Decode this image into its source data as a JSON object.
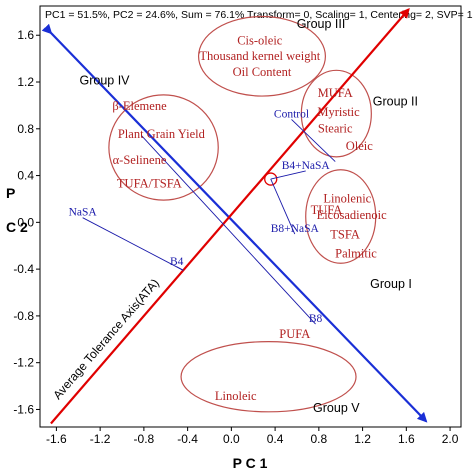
{
  "chart_data": {
    "type": "scatter",
    "header": "PC1 = 51.5%, PC2 = 24.6%, Sum = 76.1% Transform= 0, Scaling= 1, Centering= 2, SVP= 1",
    "xlabel": "P C 1",
    "ylabel": "P C 2",
    "xlim": [
      -1.75,
      2.1
    ],
    "ylim": [
      -1.75,
      1.85
    ],
    "xticks": [
      "-1.6",
      "-1.2",
      "-0.8",
      "-0.4",
      "0.0",
      "0.4",
      "0.8",
      "1.2",
      "1.6",
      "2.0"
    ],
    "yticks": [
      "1.6",
      "1.2",
      "0.8",
      "0.4",
      "0.0",
      "-0.4",
      "-0.8",
      "-1.2",
      "-1.6"
    ],
    "ytick_values": [
      1.6,
      1.2,
      0.8,
      0.4,
      0.0,
      -0.4,
      -0.8,
      -1.2,
      -1.6
    ],
    "xtick_values": [
      -1.6,
      -1.2,
      -0.8,
      -0.4,
      0.0,
      0.4,
      0.8,
      1.2,
      1.6,
      2.0
    ],
    "grid": false,
    "ata_label": "Average Tolerance Axis(ATA)",
    "ata_line": {
      "from": [
        -1.65,
        -1.72
      ],
      "to": [
        1.62,
        1.82
      ]
    },
    "ata_perpendicular": {
      "from": [
        -1.65,
        1.62
      ],
      "to": [
        1.78,
        -1.7
      ]
    },
    "ata_marker": [
      0.36,
      0.37
    ],
    "groups": [
      {
        "name": "Group III",
        "label_pos": [
          0.82,
          1.66
        ]
      },
      {
        "name": "Group IV",
        "label_pos": [
          -1.16,
          1.18
        ]
      },
      {
        "name": "Group II",
        "label_pos": [
          1.5,
          1.0
        ]
      },
      {
        "name": "Group I",
        "label_pos": [
          1.46,
          -0.56
        ]
      },
      {
        "name": "Group V",
        "label_pos": [
          0.96,
          -1.62
        ]
      }
    ],
    "ellipses": [
      {
        "cx": 0.28,
        "cy": 1.42,
        "rx": 0.58,
        "ry": 0.34
      },
      {
        "cx": -0.62,
        "cy": 0.64,
        "rx": 0.5,
        "ry": 0.45
      },
      {
        "cx": 0.96,
        "cy": 0.93,
        "rx": 0.32,
        "ry": 0.37
      },
      {
        "cx": 1.0,
        "cy": 0.05,
        "rx": 0.32,
        "ry": 0.4
      },
      {
        "cx": 0.34,
        "cy": -1.32,
        "rx": 0.8,
        "ry": 0.3
      }
    ],
    "variables": [
      {
        "name": "Cis-oleic",
        "x": 0.26,
        "y": 1.52
      },
      {
        "name": "Thousand kernel weight",
        "x": 0.26,
        "y": 1.39
      },
      {
        "name": "Oil Content",
        "x": 0.28,
        "y": 1.25
      },
      {
        "name": "β-Elemene",
        "x": -0.84,
        "y": 0.96
      },
      {
        "name": "Plant Grain Yield",
        "x": -0.64,
        "y": 0.72
      },
      {
        "name": "α-Selinene",
        "x": -0.84,
        "y": 0.5
      },
      {
        "name": "TUFA/TSFA",
        "x": -0.75,
        "y": 0.3
      },
      {
        "name": "MUFA",
        "x": 0.95,
        "y": 1.07
      },
      {
        "name": "Myristic",
        "x": 0.98,
        "y": 0.91
      },
      {
        "name": "Stearic",
        "x": 0.95,
        "y": 0.77
      },
      {
        "name": "Oleic",
        "x": 1.17,
        "y": 0.62
      },
      {
        "name": "Linolenic",
        "x": 1.06,
        "y": 0.17
      },
      {
        "name": "TUFA",
        "x": 0.87,
        "y": 0.07
      },
      {
        "name": "Eicosadienoic",
        "x": 1.1,
        "y": 0.03
      },
      {
        "name": "TSFA",
        "x": 1.04,
        "y": -0.14
      },
      {
        "name": "Palmitic",
        "x": 1.14,
        "y": -0.3
      },
      {
        "name": "PUFA",
        "x": 0.58,
        "y": -0.99
      },
      {
        "name": "Linoleic",
        "x": 0.04,
        "y": -1.52
      }
    ],
    "treatments": [
      {
        "name": "Control",
        "x": 0.55,
        "y": 0.88,
        "tail": [
          0.95,
          0.52
        ]
      },
      {
        "name": "B4+NaSA",
        "x": 0.68,
        "y": 0.44,
        "tail": [
          0.36,
          0.37
        ]
      },
      {
        "name": "NaSA",
        "x": -1.36,
        "y": 0.04,
        "tail": [
          -0.44,
          -0.41
        ]
      },
      {
        "name": "B8+NaSA",
        "x": 0.58,
        "y": -0.1,
        "tail": [
          0.36,
          0.37
        ]
      },
      {
        "name": "B4",
        "x": -0.5,
        "y": -0.38,
        "tail": [
          -0.44,
          -0.41
        ]
      },
      {
        "name": "B8",
        "x": 0.77,
        "y": -0.87,
        "tail": [
          -0.82,
          0.74
        ]
      }
    ],
    "colors": {
      "ata_axis": "#e00000",
      "perpendicular": "#1a2fd6",
      "variables": "#b22222",
      "treatments": "#1a1aaa",
      "ellipse": "#c0504d"
    }
  }
}
